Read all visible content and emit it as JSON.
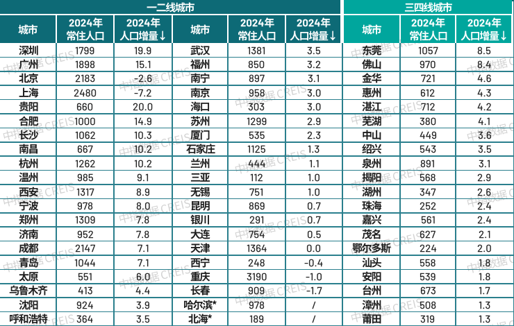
{
  "chart_data": {
    "type": "table",
    "section_headers": [
      "一二线城市",
      "三四线城市"
    ],
    "column_headers": {
      "city": "城市",
      "population_line1": "2024年",
      "population_line2": "常住人口",
      "increase_line1": "2024年",
      "increase_line2": "人口增量↓"
    },
    "column_headers_full": [
      "城市",
      "2024年常住人口",
      "2024年人口增量↓"
    ],
    "groups": [
      {
        "section": "一二线城市",
        "rows": [
          [
            "深圳",
            "1799",
            "19.9"
          ],
          [
            "广州",
            "1898",
            "15.1"
          ],
          [
            "北京",
            "2183",
            "-2.6"
          ],
          [
            "上海",
            "2480",
            "-7.2"
          ],
          [
            "贵阳",
            "660",
            "20.0"
          ],
          [
            "合肥",
            "1000",
            "14.9"
          ],
          [
            "长沙",
            "1062",
            "10.3"
          ],
          [
            "南昌",
            "667",
            "10.2"
          ],
          [
            "杭州",
            "1262",
            "10.2"
          ],
          [
            "温州",
            "985",
            "9.1"
          ],
          [
            "西安",
            "1317",
            "8.9"
          ],
          [
            "宁波",
            "978",
            "8.0"
          ],
          [
            "郑州",
            "1309",
            "7.8"
          ],
          [
            "济南",
            "952",
            "7.8"
          ],
          [
            "成都",
            "2147",
            "7.1"
          ],
          [
            "青岛",
            "1044",
            "7.1"
          ],
          [
            "太原",
            "551",
            "6.0"
          ],
          [
            "乌鲁木齐",
            "413",
            "4.4"
          ],
          [
            "沈阳",
            "924",
            "3.9"
          ],
          [
            "呼和浩特",
            "364",
            "3.5"
          ]
        ]
      },
      {
        "section": "一二线城市",
        "rows": [
          [
            "武汉",
            "1381",
            "3.5"
          ],
          [
            "福州",
            "850",
            "3.2"
          ],
          [
            "南宁",
            "897",
            "3.1"
          ],
          [
            "南京",
            "958",
            "3.0"
          ],
          [
            "海口",
            "303",
            "3.0"
          ],
          [
            "苏州",
            "1299",
            "2.9"
          ],
          [
            "厦门",
            "535",
            "2.3"
          ],
          [
            "石家庄",
            "1125",
            "1.3"
          ],
          [
            "兰州",
            "444",
            "1.1"
          ],
          [
            "三亚",
            "112",
            "1.0"
          ],
          [
            "无锡",
            "751",
            "1.0"
          ],
          [
            "昆明",
            "869",
            "0.7"
          ],
          [
            "银川",
            "291",
            "0.7"
          ],
          [
            "大连",
            "754",
            "0.5"
          ],
          [
            "天津",
            "1364",
            "0.0"
          ],
          [
            "西宁",
            "248",
            "-0.4"
          ],
          [
            "重庆",
            "3190",
            "-1.0"
          ],
          [
            "长春",
            "909",
            "-1.7"
          ],
          [
            "哈尔滨*",
            "978",
            "/"
          ],
          [
            "北海*",
            "189",
            "/"
          ]
        ]
      },
      {
        "section": "三四线城市",
        "rows": [
          [
            "东莞",
            "1057",
            "8.5"
          ],
          [
            "佛山",
            "970",
            "8.4"
          ],
          [
            "金华",
            "721",
            "4.6"
          ],
          [
            "惠州",
            "612",
            "4.3"
          ],
          [
            "湛江",
            "712",
            "4.2"
          ],
          [
            "芜湖",
            "380",
            "4.1"
          ],
          [
            "中山",
            "449",
            "3.6"
          ],
          [
            "绍兴",
            "543",
            "3.5"
          ],
          [
            "泉州",
            "891",
            "3.1"
          ],
          [
            "揭阳",
            "568",
            "2.9"
          ],
          [
            "湖州",
            "347",
            "2.6"
          ],
          [
            "珠海",
            "252",
            "2.4"
          ],
          [
            "嘉兴",
            "561",
            "2.4"
          ],
          [
            "茂名",
            "627",
            "2.1"
          ],
          [
            "鄂尔多斯",
            "224",
            "2.0"
          ],
          [
            "汕头",
            "558",
            "1.8"
          ],
          [
            "安阳",
            "539",
            "1.8"
          ],
          [
            "台州",
            "673",
            "1.7"
          ],
          [
            "漳州",
            "508",
            "1.3"
          ],
          [
            "莆田",
            "319",
            "1.3"
          ]
        ]
      }
    ]
  },
  "watermark": {
    "text": "中指数据 CREIS"
  },
  "colors": {
    "header_dark_teal": "#0d6a76",
    "header_light_teal": "#00a69d",
    "grid_line_teal": "#2a7f8d",
    "body_text": "#222222",
    "header_text": "#ffffff",
    "watermark_gray": "#d2d2d2",
    "background": "#ffffff"
  }
}
